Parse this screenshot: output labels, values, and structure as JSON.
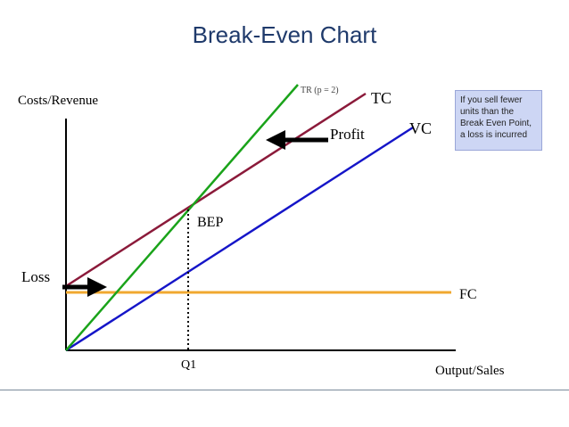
{
  "title": "Break-Even Chart",
  "y_axis_label": "Costs/Revenue",
  "x_axis_label": "Output/Sales",
  "lines": {
    "tr": {
      "label": "TR (p = 2)",
      "color": "#1aa31a"
    },
    "tc": {
      "label": "TC",
      "color": "#8b1a3a"
    },
    "vc": {
      "label": "VC",
      "color": "#1515c8"
    },
    "fc": {
      "label": "FC",
      "color": "#f0a830"
    }
  },
  "labels": {
    "profit": "Profit",
    "loss": "Loss",
    "bep": "BEP",
    "q1": "Q1"
  },
  "note": "If you sell fewer units than the Break Even Point, a loss is incurred"
}
